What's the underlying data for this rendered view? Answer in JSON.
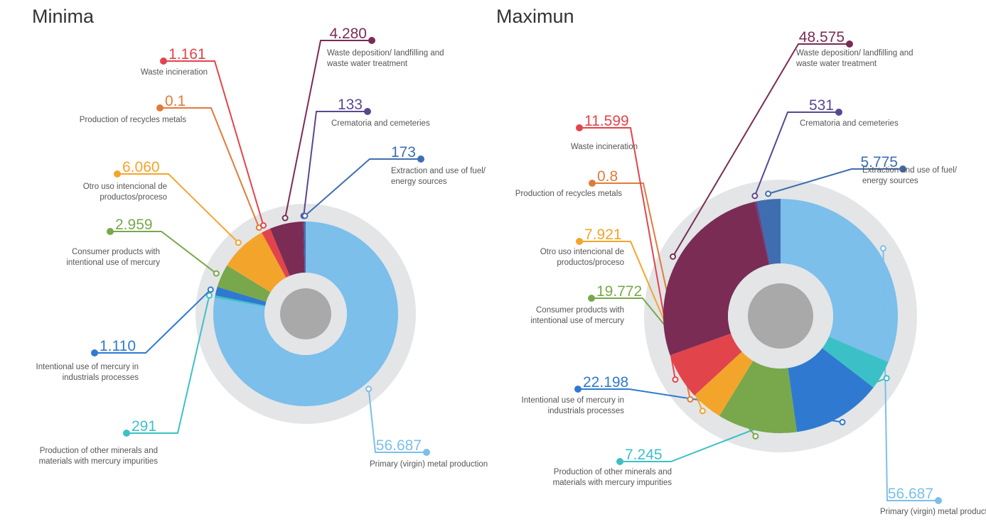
{
  "chart_data": [
    {
      "type": "donut",
      "title": "Minima",
      "categories": [
        "Primary (virgin) metal production",
        "Production of other minerals and materials with mercury impurities",
        "Intentional use of mercury in industrials processes",
        "Consumer products with intentional use of mercury",
        "Otro uso intencional de productos/proceso",
        "Production of recycles metals",
        "Waste incineration",
        "Waste deposition/ landfilling and waste water treatment",
        "Crematoria and cemeteries",
        "Extraction and use of fuel/ energy sources"
      ],
      "values": [
        56687,
        291,
        1110,
        2959,
        6060,
        0.1,
        1161,
        4280,
        133,
        173
      ],
      "value_labels": [
        "56.687",
        "291",
        "1.110",
        "2.959",
        "6.060",
        "0.1",
        "1.161",
        "4.280",
        "133",
        "173"
      ],
      "colors": [
        "#7bbfea",
        "#3cc0c8",
        "#2f7ad0",
        "#78a84b",
        "#f3a52b",
        "#e07b3a",
        "#e2444c",
        "#7a2c55",
        "#5b4791",
        "#3f6eb0"
      ]
    },
    {
      "type": "donut",
      "title": "Maximun",
      "categories": [
        "Primary (virgin) metal production",
        "Production of other minerals and materials with mercury impurities",
        "Intentional use of mercury in industrials processes",
        "Consumer products with intentional use of mercury",
        "Otro uso intencional de productos/proceso",
        "Production of recycles metals",
        "Waste incineration",
        "Waste deposition/ landfilling and waste water treatment",
        "Crematoria and cemeteries",
        "Extraction and use of fuel/ energy sources"
      ],
      "values": [
        56687,
        7245,
        22198,
        19772,
        7921,
        0.8,
        11599,
        48575,
        531,
        5775
      ],
      "value_labels": [
        "56.687",
        "7.245",
        "22.198",
        "19.772",
        "7.921",
        "0.8",
        "11.599",
        "48.575",
        "531",
        "5.775"
      ],
      "colors": [
        "#7bbfea",
        "#3cc0c8",
        "#2f7ad0",
        "#78a84b",
        "#f3a52b",
        "#e07b3a",
        "#e2444c",
        "#7a2c55",
        "#5b4791",
        "#3f6eb0"
      ]
    }
  ]
}
